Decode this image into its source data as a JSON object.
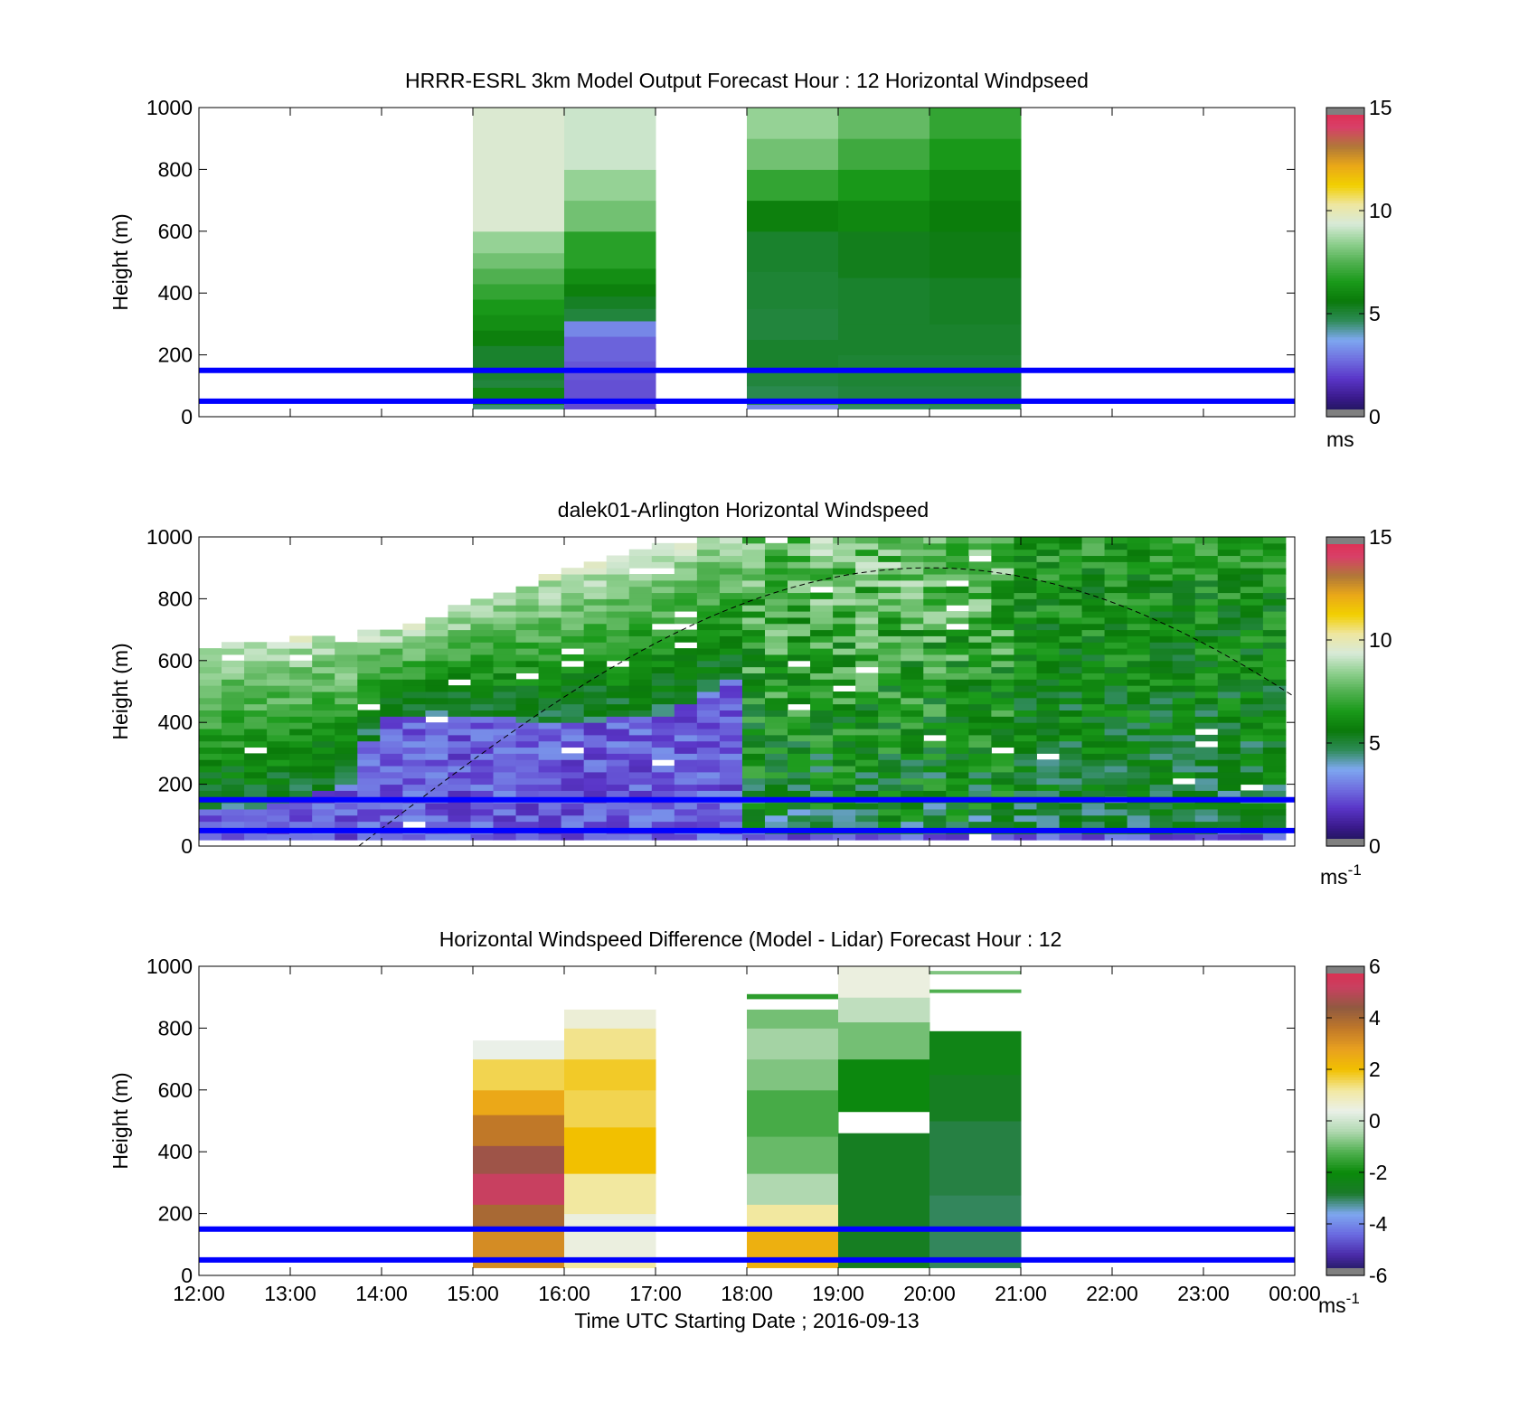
{
  "colors": {
    "reference_line": "#0000ff",
    "speed_colormap": [
      "#161648",
      "#3a1a8c",
      "#5a36c8",
      "#7070e0",
      "#7ea8f0",
      "#2e8b57",
      "#0a7a0a",
      "#1a9a1a",
      "#50b050",
      "#90d090",
      "#d8ead8",
      "#eee6a0",
      "#f2d000",
      "#eaa818",
      "#b07838",
      "#d84068",
      "#e22a4c"
    ],
    "diff_colormap": [
      "#161648",
      "#4a2aa8",
      "#6a6ae0",
      "#7ea8f0",
      "#1a7a2a",
      "#0a8a0a",
      "#50b050",
      "#b0d8b0",
      "#eaf0e8",
      "#f2e8a0",
      "#f2c000",
      "#e8a020",
      "#c07828",
      "#905a40",
      "#c84060",
      "#e22a4c"
    ]
  },
  "chart_data": [
    {
      "type": "heatmap",
      "title": "HRRR-ESRL 3km Model Output   Forecast Hour : 12 Horizontal Windpseed",
      "ylabel": "Height (m)",
      "xlim": [
        "12:00",
        "00:00"
      ],
      "ylim": [
        0,
        1000
      ],
      "yticks": [
        "0",
        "200",
        "400",
        "600",
        "800",
        "1000"
      ],
      "colorbar": {
        "range": [
          0,
          15
        ],
        "ticks": [
          "0",
          "5",
          "10",
          "15"
        ],
        "unit": "ms"
      },
      "reference_lines_m": [
        50,
        150
      ],
      "columns": [
        {
          "start_hour": 15,
          "end_hour": 16,
          "levels": [
            [
              25,
              40,
              4.5
            ],
            [
              40,
              60,
              5.2
            ],
            [
              60,
              95,
              6.0
            ],
            [
              95,
              120,
              5.0
            ],
            [
              120,
              230,
              5.2
            ],
            [
              230,
              280,
              5.8
            ],
            [
              280,
              330,
              6.2
            ],
            [
              330,
              380,
              6.5
            ],
            [
              380,
              430,
              7.0
            ],
            [
              430,
              480,
              7.5
            ],
            [
              480,
              530,
              8.0
            ],
            [
              530,
              600,
              8.5
            ],
            [
              600,
              1000,
              9.5
            ]
          ]
        },
        {
          "start_hour": 16,
          "end_hour": 17,
          "levels": [
            [
              25,
              60,
              2.2
            ],
            [
              60,
              120,
              2.3
            ],
            [
              120,
              180,
              2.4
            ],
            [
              180,
              260,
              2.6
            ],
            [
              260,
              310,
              3.2
            ],
            [
              310,
              350,
              5.0
            ],
            [
              350,
              390,
              5.3
            ],
            [
              390,
              430,
              5.8
            ],
            [
              430,
              480,
              6.2
            ],
            [
              480,
              600,
              6.8
            ],
            [
              600,
              700,
              8.0
            ],
            [
              700,
              800,
              8.5
            ],
            [
              800,
              1000,
              9.2
            ]
          ]
        },
        {
          "start_hour": 18,
          "end_hour": 19,
          "levels": [
            [
              25,
              40,
              3.2
            ],
            [
              40,
              100,
              4.8
            ],
            [
              100,
              160,
              5.0
            ],
            [
              160,
              250,
              5.2
            ],
            [
              250,
              350,
              5.0
            ],
            [
              350,
              470,
              5.1
            ],
            [
              470,
              600,
              5.2
            ],
            [
              600,
              700,
              5.8
            ],
            [
              700,
              800,
              7.0
            ],
            [
              800,
              900,
              8.0
            ],
            [
              900,
              1000,
              8.5
            ]
          ]
        },
        {
          "start_hour": 19,
          "end_hour": 20,
          "levels": [
            [
              25,
              40,
              4.6
            ],
            [
              40,
              100,
              5.0
            ],
            [
              100,
              200,
              5.1
            ],
            [
              200,
              300,
              5.2
            ],
            [
              300,
              450,
              5.2
            ],
            [
              450,
              600,
              5.4
            ],
            [
              600,
              700,
              6.0
            ],
            [
              700,
              800,
              6.5
            ],
            [
              800,
              900,
              7.2
            ],
            [
              900,
              1000,
              7.8
            ]
          ]
        },
        {
          "start_hour": 20,
          "end_hour": 21,
          "levels": [
            [
              25,
              40,
              4.7
            ],
            [
              40,
              100,
              5.0
            ],
            [
              100,
              200,
              5.1
            ],
            [
              200,
              300,
              5.2
            ],
            [
              300,
              450,
              5.3
            ],
            [
              450,
              600,
              5.5
            ],
            [
              600,
              700,
              5.7
            ],
            [
              700,
              800,
              6.0
            ],
            [
              800,
              900,
              6.5
            ],
            [
              900,
              1000,
              7.0
            ]
          ]
        }
      ]
    },
    {
      "type": "heatmap",
      "title": "dalek01-Arlington  Horizontal Windspeed",
      "ylabel": "Height (m)",
      "xlim": [
        "12:00",
        "00:00"
      ],
      "ylim": [
        0,
        1000
      ],
      "yticks": [
        "0",
        "200",
        "400",
        "600",
        "800",
        "1000"
      ],
      "colorbar": {
        "range": [
          0,
          15
        ],
        "ticks": [
          "0",
          "5",
          "10",
          "15"
        ],
        "unit": "ms",
        "unit_exponent": "-1"
      },
      "reference_lines_m": [
        50,
        150
      ],
      "data_x_range_hours": [
        12,
        23.9
      ],
      "top_profile_m": [
        [
          12.0,
          650
        ],
        [
          13.0,
          660
        ],
        [
          14.0,
          690
        ],
        [
          14.5,
          720
        ],
        [
          15.0,
          780
        ],
        [
          15.5,
          830
        ],
        [
          16.0,
          880
        ],
        [
          16.5,
          930
        ],
        [
          17.0,
          960
        ],
        [
          17.5,
          990
        ],
        [
          18.0,
          1000
        ],
        [
          24.0,
          1000
        ]
      ],
      "low_speed_layer_top_m": [
        [
          12.0,
          120
        ],
        [
          12.6,
          120
        ],
        [
          13.6,
          200
        ],
        [
          14.0,
          420
        ],
        [
          15.0,
          420
        ],
        [
          16.0,
          400
        ],
        [
          17.0,
          420
        ],
        [
          17.5,
          480
        ],
        [
          17.9,
          560
        ],
        [
          18.0,
          40
        ],
        [
          24.0,
          40
        ]
      ],
      "solar_curve_peak_m": 900,
      "solar_curve_peak_hour": 20.0,
      "solar_curve_end_hour": 13.75
    },
    {
      "type": "heatmap",
      "title": "Horizontal Windspeed Difference (Model - Lidar) Forecast Hour : 12",
      "ylabel": "Height (m)",
      "xlabel": "Time UTC  Starting Date ; 2016-09-13",
      "xlim": [
        "12:00",
        "00:00"
      ],
      "ylim": [
        0,
        1000
      ],
      "yticks": [
        "0",
        "200",
        "400",
        "600",
        "800",
        "1000"
      ],
      "xticks": [
        "12:00",
        "13:00",
        "14:00",
        "15:00",
        "16:00",
        "17:00",
        "18:00",
        "19:00",
        "20:00",
        "21:00",
        "22:00",
        "23:00",
        "00:00"
      ],
      "colorbar": {
        "range": [
          -6,
          6
        ],
        "ticks": [
          "-6",
          "-4",
          "-2",
          "0",
          "2",
          "4",
          "6"
        ],
        "unit": "ms",
        "unit_exponent": "-1"
      },
      "reference_lines_m": [
        50,
        150
      ],
      "columns": [
        {
          "start_hour": 15,
          "end_hour": 16,
          "levels": [
            [
              25,
              150,
              3.2
            ],
            [
              150,
              230,
              4.0
            ],
            [
              230,
              330,
              5.2
            ],
            [
              330,
              420,
              4.6
            ],
            [
              420,
              520,
              3.6
            ],
            [
              520,
              600,
              2.6
            ],
            [
              600,
              700,
              1.6
            ],
            [
              700,
              760,
              0.4
            ]
          ]
        },
        {
          "start_hour": 16,
          "end_hour": 17,
          "levels": [
            [
              25,
              60,
              1.2
            ],
            [
              60,
              200,
              0.5
            ],
            [
              200,
              330,
              1.2
            ],
            [
              330,
              480,
              2.0
            ],
            [
              480,
              600,
              1.6
            ],
            [
              600,
              700,
              1.8
            ],
            [
              700,
              800,
              1.3
            ],
            [
              800,
              860,
              0.6
            ]
          ]
        },
        {
          "start_hour": 18,
          "end_hour": 19,
          "levels": [
            [
              25,
              150,
              2.4
            ],
            [
              150,
              230,
              1.2
            ],
            [
              230,
              330,
              -0.4
            ],
            [
              330,
              450,
              -1.0
            ],
            [
              450,
              600,
              -1.3
            ],
            [
              600,
              700,
              -0.8
            ],
            [
              700,
              800,
              -0.5
            ],
            [
              800,
              860,
              -0.9
            ],
            [
              895,
              910,
              -1.6
            ]
          ]
        },
        {
          "start_hour": 19,
          "end_hour": 20,
          "levels": [
            [
              25,
              460,
              -2.6
            ],
            [
              460,
              530,
              null
            ],
            [
              530,
              700,
              -2.1
            ],
            [
              700,
              820,
              -0.9
            ],
            [
              820,
              900,
              -0.2
            ],
            [
              900,
              1000,
              0.5
            ]
          ]
        },
        {
          "start_hour": 20,
          "end_hour": 21,
          "levels": [
            [
              25,
              260,
              -3.0
            ],
            [
              260,
              500,
              -2.9
            ],
            [
              500,
              650,
              -2.6
            ],
            [
              650,
              790,
              -2.3
            ],
            [
              915,
              925,
              -1.2
            ],
            [
              975,
              985,
              -0.8
            ]
          ]
        }
      ]
    }
  ]
}
